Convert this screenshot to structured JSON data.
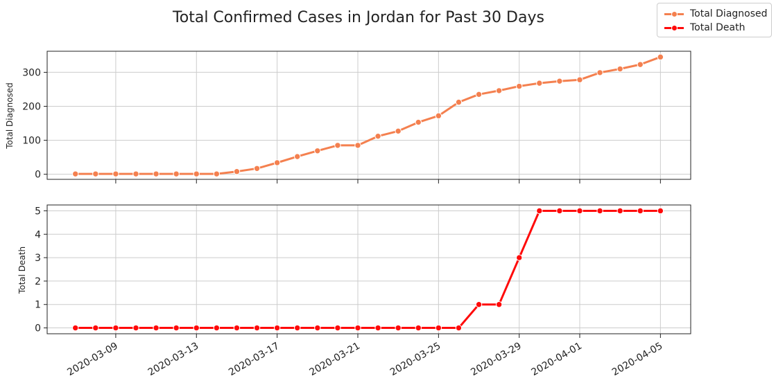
{
  "chart_data": [
    {
      "type": "line",
      "title": "Total Confirmed Cases in Jordan for Past 30 Days",
      "ylabel": "Total Diagnosed",
      "ylim": [
        -15,
        362
      ],
      "yticks": [
        0,
        100,
        200,
        300
      ],
      "series": [
        {
          "name": "Total Diagnosed",
          "color": "#f4804f",
          "x": [
            "2020-03-07",
            "2020-03-08",
            "2020-03-09",
            "2020-03-10",
            "2020-03-11",
            "2020-03-12",
            "2020-03-13",
            "2020-03-14",
            "2020-03-15",
            "2020-03-16",
            "2020-03-17",
            "2020-03-18",
            "2020-03-19",
            "2020-03-20",
            "2020-03-21",
            "2020-03-22",
            "2020-03-23",
            "2020-03-24",
            "2020-03-25",
            "2020-03-26",
            "2020-03-27",
            "2020-03-28",
            "2020-03-29",
            "2020-03-30",
            "2020-03-31",
            "2020-04-01",
            "2020-04-02",
            "2020-04-03",
            "2020-04-04",
            "2020-04-05"
          ],
          "values": [
            1,
            1,
            1,
            1,
            1,
            1,
            1,
            1,
            8,
            17,
            34,
            52,
            69,
            85,
            85,
            112,
            127,
            153,
            172,
            212,
            235,
            246,
            259,
            268,
            274,
            278,
            299,
            310,
            323,
            345
          ]
        }
      ],
      "grid": true
    },
    {
      "type": "line",
      "ylabel": "Total Death",
      "ylim": [
        -0.25,
        5.25
      ],
      "yticks": [
        0,
        1,
        2,
        3,
        4,
        5
      ],
      "xticks": [
        "2020-03-09",
        "2020-03-13",
        "2020-03-17",
        "2020-03-21",
        "2020-03-25",
        "2020-03-29",
        "2020-04-01",
        "2020-04-05"
      ],
      "series": [
        {
          "name": "Total Death",
          "color": "#ff0a0a",
          "x": [
            "2020-03-07",
            "2020-03-08",
            "2020-03-09",
            "2020-03-10",
            "2020-03-11",
            "2020-03-12",
            "2020-03-13",
            "2020-03-14",
            "2020-03-15",
            "2020-03-16",
            "2020-03-17",
            "2020-03-18",
            "2020-03-19",
            "2020-03-20",
            "2020-03-21",
            "2020-03-22",
            "2020-03-23",
            "2020-03-24",
            "2020-03-25",
            "2020-03-26",
            "2020-03-27",
            "2020-03-28",
            "2020-03-29",
            "2020-03-30",
            "2020-03-31",
            "2020-04-01",
            "2020-04-02",
            "2020-04-03",
            "2020-04-04",
            "2020-04-05"
          ],
          "values": [
            0,
            0,
            0,
            0,
            0,
            0,
            0,
            0,
            0,
            0,
            0,
            0,
            0,
            0,
            0,
            0,
            0,
            0,
            0,
            0,
            1,
            1,
            3,
            5,
            5,
            5,
            5,
            5,
            5,
            5
          ]
        }
      ],
      "grid": true
    }
  ],
  "legend": {
    "placement": "top-right",
    "items": [
      {
        "label": "Total Diagnosed",
        "color": "#f4804f"
      },
      {
        "label": "Total Death",
        "color": "#ff0a0a"
      }
    ]
  }
}
